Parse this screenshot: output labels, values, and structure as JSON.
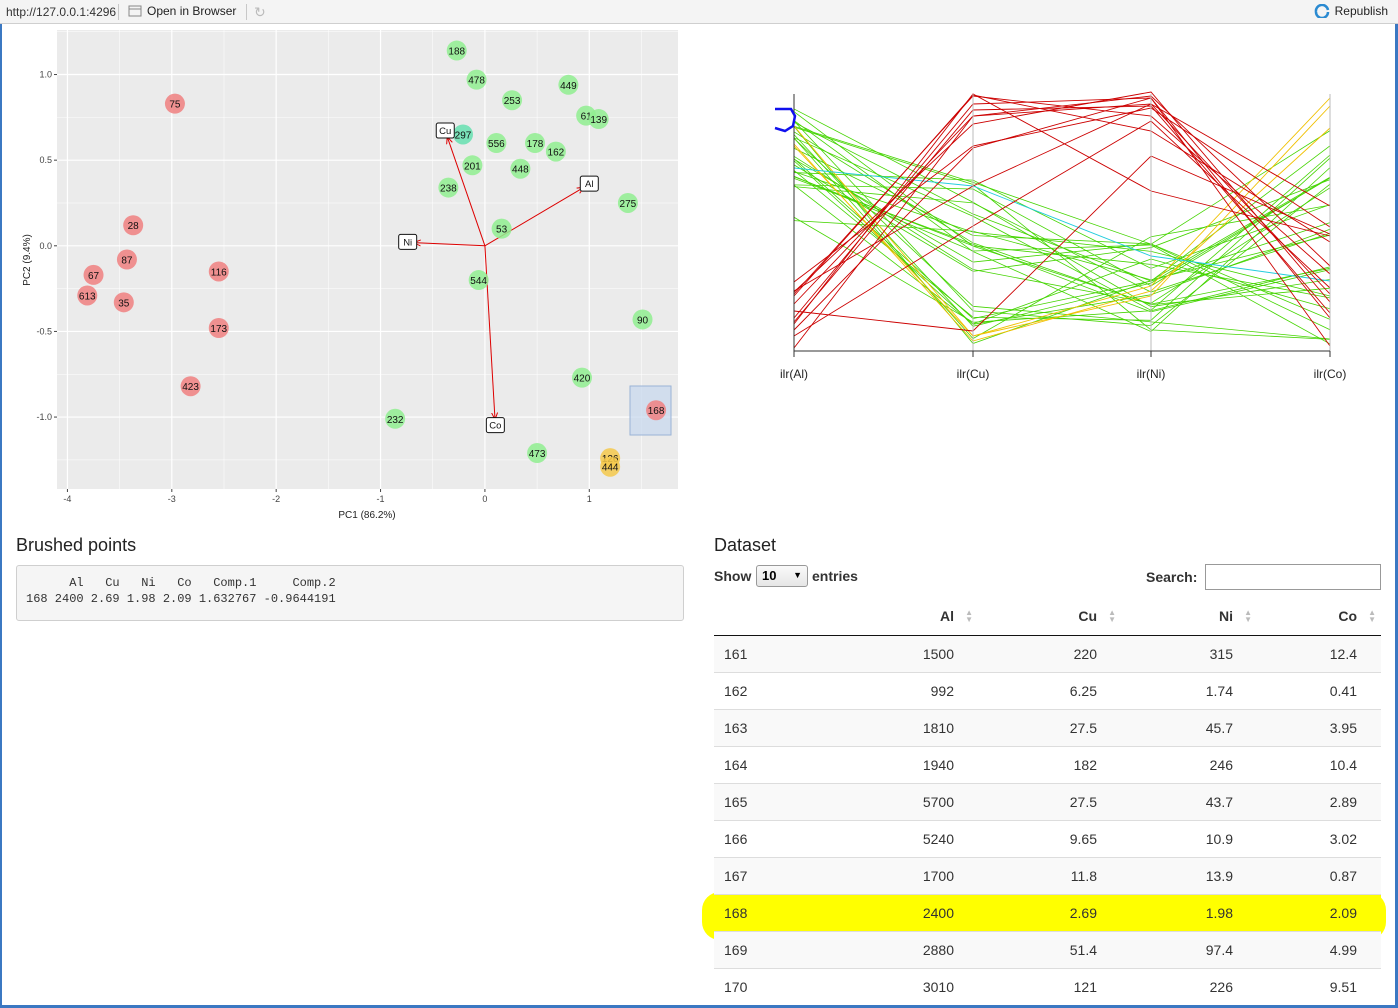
{
  "topbar": {
    "url": "http://127.0.0.1:4296",
    "open_browser": "Open in Browser",
    "republish": "Republish"
  },
  "biplot": {
    "xlabel": "PC1 (86.2%)",
    "ylabel": "PC2 (9.4%)",
    "xticks": [
      "-4",
      "-3",
      "-2",
      "-1",
      "0",
      "1"
    ],
    "yticks": [
      "1.0",
      "0.5",
      "0.0",
      "-0.5",
      "-1.0"
    ],
    "colors": {
      "red": "#f08080",
      "green": "#90ee90",
      "orange": "#f4c94c",
      "teal": "#66e0b0"
    },
    "points": [
      {
        "label": "188",
        "x": -0.27,
        "y": 1.14,
        "c": "green"
      },
      {
        "label": "478",
        "x": -0.08,
        "y": 0.97,
        "c": "green"
      },
      {
        "label": "449",
        "x": 0.8,
        "y": 0.94,
        "c": "green"
      },
      {
        "label": "253",
        "x": 0.26,
        "y": 0.85,
        "c": "green"
      },
      {
        "label": "75",
        "x": -2.97,
        "y": 0.83,
        "c": "red"
      },
      {
        "label": "61",
        "x": 0.97,
        "y": 0.76,
        "c": "green"
      },
      {
        "label": "139",
        "x": 1.09,
        "y": 0.74,
        "c": "green"
      },
      {
        "label": "297",
        "x": -0.21,
        "y": 0.65,
        "c": "teal"
      },
      {
        "label": "556",
        "x": 0.11,
        "y": 0.6,
        "c": "green"
      },
      {
        "label": "178",
        "x": 0.48,
        "y": 0.6,
        "c": "green"
      },
      {
        "label": "162",
        "x": 0.68,
        "y": 0.55,
        "c": "green"
      },
      {
        "label": "201",
        "x": -0.12,
        "y": 0.47,
        "c": "green"
      },
      {
        "label": "448",
        "x": 0.34,
        "y": 0.45,
        "c": "green"
      },
      {
        "label": "238",
        "x": -0.35,
        "y": 0.34,
        "c": "green"
      },
      {
        "label": "275",
        "x": 1.37,
        "y": 0.25,
        "c": "green"
      },
      {
        "label": "28",
        "x": -3.37,
        "y": 0.12,
        "c": "red"
      },
      {
        "label": "53",
        "x": 0.16,
        "y": 0.1,
        "c": "green"
      },
      {
        "label": "87",
        "x": -3.43,
        "y": -0.08,
        "c": "red"
      },
      {
        "label": "67",
        "x": -3.75,
        "y": -0.17,
        "c": "red"
      },
      {
        "label": "116",
        "x": -2.55,
        "y": -0.15,
        "c": "red"
      },
      {
        "label": "544",
        "x": -0.06,
        "y": -0.2,
        "c": "green"
      },
      {
        "label": "613",
        "x": -3.81,
        "y": -0.29,
        "c": "red"
      },
      {
        "label": "35",
        "x": -3.46,
        "y": -0.33,
        "c": "red"
      },
      {
        "label": "173",
        "x": -2.55,
        "y": -0.48,
        "c": "red"
      },
      {
        "label": "90",
        "x": 1.51,
        "y": -0.43,
        "c": "green"
      },
      {
        "label": "420",
        "x": 0.93,
        "y": -0.77,
        "c": "green"
      },
      {
        "label": "423",
        "x": -2.82,
        "y": -0.82,
        "c": "red"
      },
      {
        "label": "168",
        "x": 1.64,
        "y": -0.96,
        "c": "red"
      },
      {
        "label": "232",
        "x": -0.86,
        "y": -1.01,
        "c": "green"
      },
      {
        "label": "473",
        "x": 0.5,
        "y": -1.21,
        "c": "green"
      },
      {
        "label": "126",
        "x": 1.2,
        "y": -1.24,
        "c": "orange"
      },
      {
        "label": "444",
        "x": 1.2,
        "y": -1.29,
        "c": "orange"
      }
    ],
    "arrows": [
      {
        "label": "Cu",
        "x": -0.38,
        "y": 0.67
      },
      {
        "label": "Al",
        "x": 1.0,
        "y": 0.36
      },
      {
        "label": "Ni",
        "x": -0.74,
        "y": 0.02
      },
      {
        "label": "Co",
        "x": 0.1,
        "y": -1.05
      }
    ]
  },
  "parcoord": {
    "axes": [
      "ilr(Al)",
      "ilr(Cu)",
      "ilr(Ni)",
      "ilr(Co)"
    ]
  },
  "brushed": {
    "title": "Brushed points",
    "line1": "      Al   Cu   Ni   Co   Comp.1     Comp.2",
    "line2": "168 2400 2.69 1.98 2.09 1.632767 -0.9644191"
  },
  "dataset": {
    "title": "Dataset",
    "show_label": "Show",
    "length_value": "10",
    "entries_label": "entries",
    "search_label": "Search:",
    "columns": [
      "",
      "Al",
      "Cu",
      "Ni",
      "Co"
    ],
    "rows": [
      [
        "161",
        "1500",
        "220",
        "315",
        "12.4"
      ],
      [
        "162",
        "992",
        "6.25",
        "1.74",
        "0.41"
      ],
      [
        "163",
        "1810",
        "27.5",
        "45.7",
        "3.95"
      ],
      [
        "164",
        "1940",
        "182",
        "246",
        "10.4"
      ],
      [
        "165",
        "5700",
        "27.5",
        "43.7",
        "2.89"
      ],
      [
        "166",
        "5240",
        "9.65",
        "10.9",
        "3.02"
      ],
      [
        "167",
        "1700",
        "11.8",
        "13.9",
        "0.87"
      ],
      [
        "168",
        "2400",
        "2.69",
        "1.98",
        "2.09"
      ],
      [
        "169",
        "2880",
        "51.4",
        "97.4",
        "4.99"
      ],
      [
        "170",
        "3010",
        "121",
        "226",
        "9.51"
      ]
    ],
    "highlight_row": "168"
  }
}
